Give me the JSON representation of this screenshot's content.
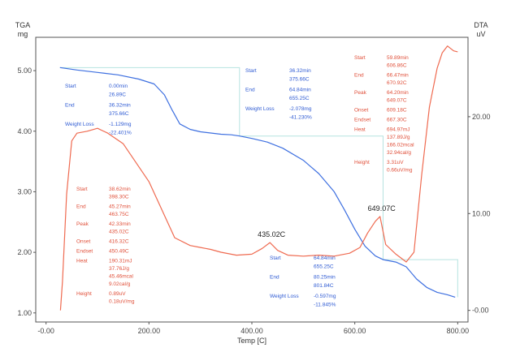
{
  "chart_data": {
    "type": "line",
    "xlabel": "Temp  [C]",
    "y_left_label": [
      "TGA",
      "mg"
    ],
    "y_right_label": [
      "DTA",
      "uV"
    ],
    "xlim": [
      -20,
      820
    ],
    "ylim_left": [
      0.85,
      5.55
    ],
    "ylim_right": [
      -1.2,
      28.2
    ],
    "x_ticks": [
      "-0.00",
      "200.00",
      "400.00",
      "600.00",
      "800.00"
    ],
    "x_tick_values": [
      0,
      200,
      400,
      600,
      800
    ],
    "y_left_ticks": [
      "5.00",
      "4.00",
      "3.00",
      "2.00",
      "1.00"
    ],
    "y_left_tick_values": [
      5,
      4,
      3,
      2,
      1
    ],
    "y_right_ticks": [
      "20.00",
      "10.00",
      "-0.00"
    ],
    "y_right_tick_values": [
      20,
      10,
      0
    ],
    "colors": {
      "tga": "#3d6fe0",
      "dta": "#ef6a50",
      "bracket": "#b6e3e0",
      "frame": "#555555"
    },
    "series": [
      {
        "axis": "left",
        "color": "#3d6fe0",
        "x": [
          27,
          60,
          100,
          140,
          180,
          210,
          230,
          245,
          260,
          280,
          300,
          320,
          340,
          360,
          376,
          400,
          430,
          460,
          500,
          530,
          560,
          580,
          600,
          620,
          640,
          655,
          680,
          700,
          720,
          740,
          760,
          780,
          795
        ],
        "y": [
          5.05,
          5.01,
          4.97,
          4.93,
          4.86,
          4.78,
          4.6,
          4.35,
          4.12,
          4.03,
          3.99,
          3.97,
          3.95,
          3.94,
          3.92,
          3.88,
          3.82,
          3.72,
          3.52,
          3.3,
          3.0,
          2.7,
          2.38,
          2.1,
          1.94,
          1.88,
          1.84,
          1.76,
          1.56,
          1.42,
          1.34,
          1.3,
          1.26
        ]
      },
      {
        "axis": "right",
        "color": "#ef6a50",
        "x": [
          28,
          32,
          40,
          50,
          60,
          80,
          100,
          120,
          150,
          200,
          250,
          280,
          300,
          320,
          340,
          370,
          400,
          420,
          435,
          450,
          470,
          500,
          530,
          560,
          590,
          610,
          625,
          640,
          649,
          660,
          680,
          700,
          715,
          730,
          745,
          760,
          770,
          780,
          792,
          800
        ],
        "y": [
          0,
          3,
          12,
          17.5,
          18.3,
          18.5,
          18.8,
          18.3,
          17.2,
          13.3,
          7.5,
          6.7,
          6.5,
          6.3,
          6.0,
          5.7,
          5.8,
          6.4,
          7.0,
          6.2,
          5.7,
          5.6,
          5.7,
          5.6,
          5.9,
          6.5,
          8.0,
          9.2,
          9.7,
          6.8,
          5.8,
          5.0,
          6.0,
          14.0,
          21.0,
          25.0,
          26.6,
          27.3,
          26.8,
          26.7
        ]
      }
    ],
    "peak_labels": [
      {
        "x": 435,
        "dta": 7.0,
        "text": "435.02C"
      },
      {
        "x": 649,
        "dta": 9.7,
        "text": "649.07C"
      }
    ],
    "brackets": [
      {
        "x1": 27,
        "x2": 376,
        "y_left": 5.05,
        "y_right": 3.92
      },
      {
        "x1": 376,
        "x2": 655,
        "y_left": 3.92,
        "y_right": 1.88
      },
      {
        "x1": 655,
        "x2": 800,
        "y_left": 1.88,
        "y_right": 1.26
      }
    ],
    "annotations": [
      {
        "color": "blue",
        "rows": [
          {
            "label": "Start",
            "values": [
              "0.00min",
              "26.89C"
            ]
          },
          {
            "label": "End",
            "values": [
              "36.32min",
              "375.66C"
            ]
          },
          {
            "label": "Weight Loss",
            "values": [
              "-1.129mg",
              "-22.401%"
            ]
          }
        ]
      },
      {
        "color": "blue",
        "rows": [
          {
            "label": "Start",
            "values": [
              "36.32min",
              "375.66C"
            ]
          },
          {
            "label": "End",
            "values": [
              "64.84min",
              "655.25C"
            ]
          },
          {
            "label": "Weight Loss",
            "values": [
              "-2.078mg",
              "-41.230%"
            ]
          }
        ]
      },
      {
        "color": "blue",
        "rows": [
          {
            "label": "Start",
            "values": [
              "64.84min",
              "655.25C"
            ]
          },
          {
            "label": "End",
            "values": [
              "80.25min",
              "801.84C"
            ]
          },
          {
            "label": "Weight Loss",
            "values": [
              "-0.597mg",
              "-11.845%"
            ]
          }
        ]
      },
      {
        "color": "red",
        "rows": [
          {
            "label": "Start",
            "values": [
              "38.62min",
              "398.30C"
            ]
          },
          {
            "label": "End",
            "values": [
              "45.27min",
              "463.75C"
            ]
          },
          {
            "label": "Peak",
            "values": [
              "42.33min",
              "435.02C"
            ]
          },
          {
            "label": "Onset",
            "values": [
              "416.32C"
            ]
          },
          {
            "label": "Endset",
            "values": [
              "450.49C"
            ]
          },
          {
            "label": "Heat",
            "values": [
              "190.31mJ",
              "37.76J/g",
              "45.46mcal",
              "9.02cal/g"
            ]
          },
          {
            "label": "Height",
            "values": [
              "0.89uV",
              "0.18uV/mg"
            ]
          }
        ]
      },
      {
        "color": "red",
        "rows": [
          {
            "label": "Start",
            "values": [
              "59.89min",
              "606.86C"
            ]
          },
          {
            "label": "End",
            "values": [
              "66.47min",
              "670.92C"
            ]
          },
          {
            "label": "Peak",
            "values": [
              "64.20min",
              "649.07C"
            ]
          },
          {
            "label": "Onset",
            "values": [
              "609.18C"
            ]
          },
          {
            "label": "Endset",
            "values": [
              "667.30C"
            ]
          },
          {
            "label": "Heat",
            "values": [
              "694.97mJ",
              "137.89J/g",
              "166.02mcal",
              "32.94cal/g"
            ]
          },
          {
            "label": "Height",
            "values": [
              "3.31uV",
              "0.66uV/mg"
            ]
          }
        ]
      }
    ]
  }
}
